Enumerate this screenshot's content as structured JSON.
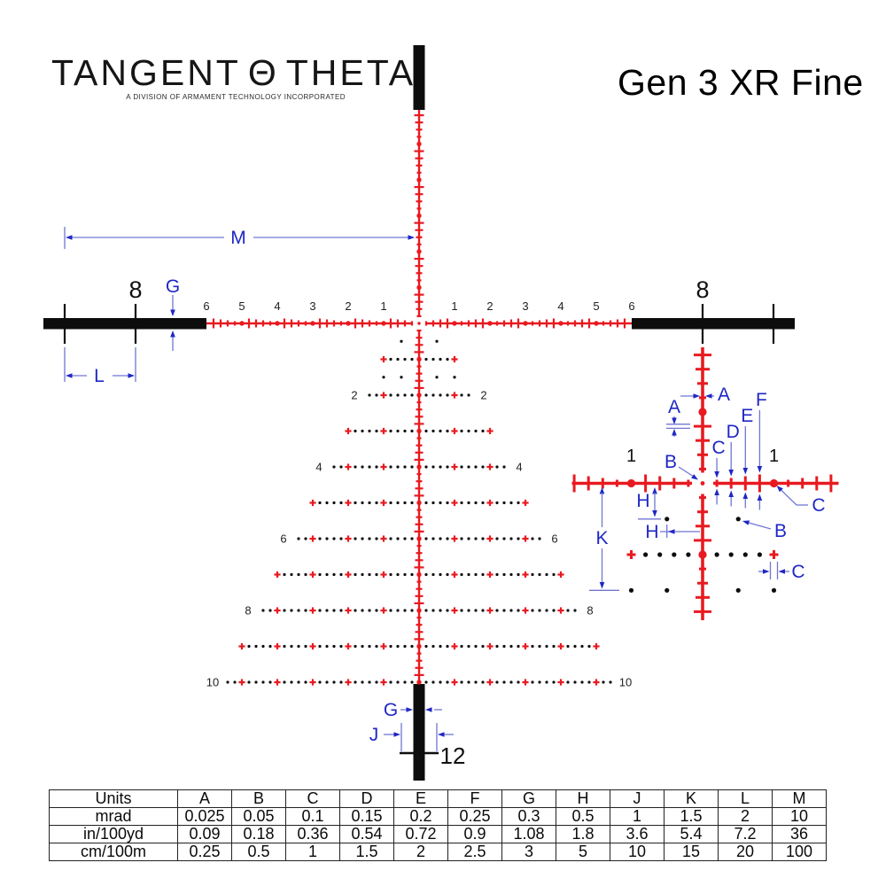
{
  "header": {
    "brand_word1": "TANGENT",
    "brand_theta": "Θ",
    "brand_word2": "THETA",
    "brand_subtitle": "A DIVISION OF ARMAMENT TECHNOLOGY INCORPORATED",
    "product_title": "Gen 3 XR Fine"
  },
  "reticle": {
    "colors": {
      "red": "#e81a20",
      "blue_label": "#1f27c4",
      "blue_line": "#7076d2",
      "black": "#0d0d0d",
      "number_gray": "#222222"
    },
    "horizontal_scale_numbers": [
      "1",
      "2",
      "3",
      "4",
      "5",
      "6"
    ],
    "bar_tick_label": "8",
    "tree_row_labels": [
      {
        "row": 2,
        "label": "2"
      },
      {
        "row": 4,
        "label": "4"
      },
      {
        "row": 6,
        "label": "6"
      },
      {
        "row": 8,
        "label": "8"
      },
      {
        "row": 10,
        "label": "10"
      }
    ],
    "bottom_tick_label": "12",
    "detail_mil_labels": [
      "1",
      "1"
    ],
    "dimension_letters": {
      "A": "A",
      "B": "B",
      "C": "C",
      "D": "D",
      "E": "E",
      "F": "F",
      "G": "G",
      "H": "H",
      "J": "J",
      "K": "K",
      "L": "L",
      "M": "M"
    }
  },
  "table": {
    "columns": [
      "Units",
      "A",
      "B",
      "C",
      "D",
      "E",
      "F",
      "G",
      "H",
      "J",
      "K",
      "L",
      "M"
    ],
    "rows": [
      {
        "unit": "mrad",
        "values": [
          "0.025",
          "0.05",
          "0.1",
          "0.15",
          "0.2",
          "0.25",
          "0.3",
          "0.5",
          "1",
          "1.5",
          "2",
          "10"
        ]
      },
      {
        "unit": "in/100yd",
        "values": [
          "0.09",
          "0.18",
          "0.36",
          "0.54",
          "0.72",
          "0.9",
          "1.08",
          "1.8",
          "3.6",
          "5.4",
          "7.2",
          "36"
        ]
      },
      {
        "unit": "cm/100m",
        "values": [
          "0.25",
          "0.5",
          "1",
          "1.5",
          "2",
          "2.5",
          "3",
          "5",
          "10",
          "15",
          "20",
          "100"
        ]
      }
    ]
  }
}
